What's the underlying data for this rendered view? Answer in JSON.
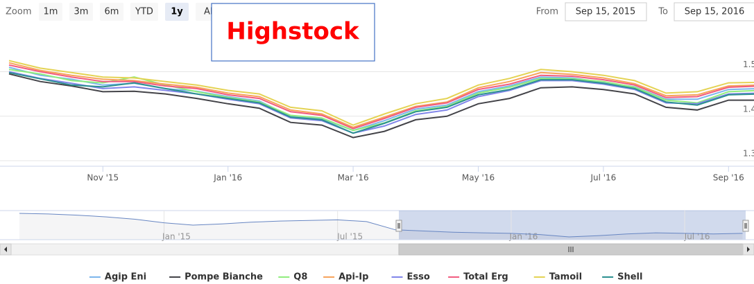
{
  "range_selector": {
    "zoom_label": "Zoom",
    "buttons": [
      "1m",
      "3m",
      "6m",
      "YTD",
      "1y",
      "All"
    ],
    "selected": "1y",
    "from_label": "From",
    "from": "Sep 15, 2015",
    "to_label": "To",
    "to": "Sep 15, 2016"
  },
  "watermark": "Highstock",
  "chart_data": {
    "type": "line",
    "categories": [
      null,
      null,
      null,
      "Nov '15",
      null,
      null,
      null,
      "Jan '16",
      null,
      null,
      null,
      "Mar '16",
      null,
      null,
      null,
      "May '16",
      null,
      null,
      null,
      "Jul '16",
      null,
      null,
      null,
      "Sep '16",
      null
    ],
    "ylim": [
      1.2875,
      1.56
    ],
    "yticks": [
      1.3,
      1.4,
      1.5
    ],
    "grid": true,
    "series": [
      {
        "name": "Agip Eni",
        "color": "#7cb5ec",
        "values": [
          1.51,
          1.492,
          1.483,
          1.47,
          1.474,
          1.462,
          1.456,
          1.444,
          1.434,
          1.4,
          1.394,
          1.368,
          1.39,
          1.416,
          1.425,
          1.455,
          1.468,
          1.488,
          1.486,
          1.476,
          1.466,
          1.438,
          1.438,
          1.46,
          1.462
        ]
      },
      {
        "name": "Pompe Bianche",
        "color": "#434348",
        "values": [
          1.495,
          1.478,
          1.468,
          1.455,
          1.456,
          1.45,
          1.44,
          1.428,
          1.418,
          1.386,
          1.38,
          1.352,
          1.366,
          1.392,
          1.4,
          1.428,
          1.44,
          1.464,
          1.466,
          1.46,
          1.45,
          1.42,
          1.414,
          1.436,
          1.436
        ]
      },
      {
        "name": "Q8",
        "color": "#90ed7d",
        "values": [
          1.505,
          1.495,
          1.48,
          1.475,
          1.488,
          1.47,
          1.455,
          1.442,
          1.432,
          1.402,
          1.396,
          1.368,
          1.385,
          1.412,
          1.422,
          1.452,
          1.465,
          1.485,
          1.484,
          1.478,
          1.465,
          1.436,
          1.43,
          1.455,
          1.458
        ]
      },
      {
        "name": "Api-Ip",
        "color": "#f7a35c",
        "values": [
          1.52,
          1.503,
          1.492,
          1.483,
          1.48,
          1.472,
          1.465,
          1.452,
          1.444,
          1.414,
          1.405,
          1.375,
          1.398,
          1.422,
          1.432,
          1.464,
          1.478,
          1.498,
          1.494,
          1.486,
          1.473,
          1.446,
          1.448,
          1.468,
          1.47
        ]
      },
      {
        "name": "Esso",
        "color": "#8085e9",
        "values": [
          1.5,
          1.485,
          1.474,
          1.462,
          1.466,
          1.458,
          1.45,
          1.438,
          1.428,
          1.396,
          1.39,
          1.362,
          1.378,
          1.404,
          1.414,
          1.444,
          1.458,
          1.48,
          1.48,
          1.472,
          1.46,
          1.43,
          1.428,
          1.45,
          1.452
        ]
      },
      {
        "name": "Total Erg",
        "color": "#f15c80",
        "values": [
          1.515,
          1.5,
          1.488,
          1.478,
          1.478,
          1.468,
          1.462,
          1.448,
          1.44,
          1.41,
          1.402,
          1.372,
          1.395,
          1.42,
          1.43,
          1.46,
          1.472,
          1.492,
          1.49,
          1.482,
          1.47,
          1.442,
          1.444,
          1.465,
          1.468
        ]
      },
      {
        "name": "Tamoil",
        "color": "#e4d354",
        "values": [
          1.525,
          1.508,
          1.498,
          1.488,
          1.486,
          1.478,
          1.47,
          1.458,
          1.45,
          1.42,
          1.412,
          1.38,
          1.405,
          1.428,
          1.44,
          1.47,
          1.485,
          1.505,
          1.5,
          1.492,
          1.48,
          1.452,
          1.455,
          1.475,
          1.476
        ]
      },
      {
        "name": "Shell",
        "color": "#2b908f",
        "values": [
          1.498,
          1.484,
          1.47,
          1.466,
          1.475,
          1.462,
          1.45,
          1.44,
          1.43,
          1.398,
          1.392,
          1.362,
          1.384,
          1.41,
          1.42,
          1.448,
          1.46,
          1.482,
          1.482,
          1.474,
          1.462,
          1.432,
          1.425,
          1.448,
          1.45
        ]
      }
    ],
    "navigator": {
      "categories": [
        null,
        null,
        null,
        null,
        null,
        "Jan '15",
        null,
        null,
        null,
        null,
        null,
        "Jul '15",
        null,
        null,
        null,
        null,
        null,
        "Jan '16",
        null,
        null,
        null,
        null,
        null,
        "Jul '16",
        null,
        null
      ],
      "values": [
        1.8,
        1.79,
        1.77,
        1.74,
        1.7,
        1.64,
        1.6,
        1.62,
        1.65,
        1.67,
        1.68,
        1.69,
        1.66,
        1.52,
        1.5,
        1.48,
        1.47,
        1.46,
        1.44,
        1.4,
        1.42,
        1.45,
        1.47,
        1.46,
        1.45,
        1.46
      ]
    }
  }
}
